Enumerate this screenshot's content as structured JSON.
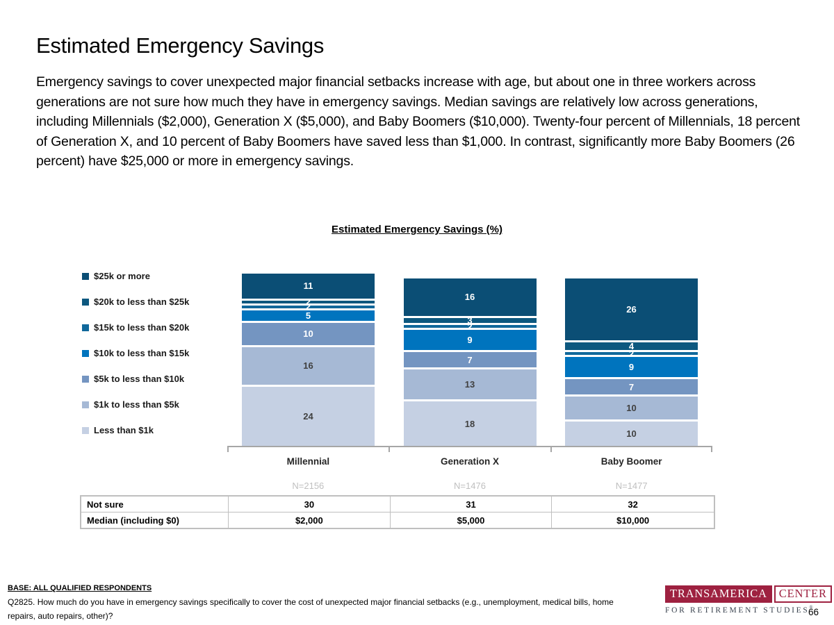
{
  "slide": {
    "title": "Estimated Emergency Savings",
    "body": "Emergency savings to cover unexpected major financial setbacks increase with age, but about one in three workers across generations are not sure how much they have in emergency savings. Median savings are relatively low across generations, including Millennials ($2,000), Generation X ($5,000), and Baby Boomers ($10,000). Twenty-four percent of Millennials, 18 percent of Generation X, and 10 percent of Baby Boomers have saved less than $1,000. In contrast, significantly more Baby Boomers (26 percent) have $25,000 or more in emergency savings.",
    "page_number": "66"
  },
  "chart_data": {
    "type": "bar",
    "stacked": true,
    "title": "Estimated Emergency Savings (%)",
    "categories": [
      "Millennial",
      "Generation X",
      "Baby Boomer"
    ],
    "sample_sizes": [
      "N=2156",
      "N=1476",
      "N=1477"
    ],
    "series": [
      {
        "name": "$25k or more",
        "color": "#0B4E75",
        "values": [
          11,
          16,
          26
        ]
      },
      {
        "name": "$20k to less than $25k",
        "color": "#0D587F",
        "values": [
          2,
          3,
          4
        ]
      },
      {
        "name": "$15k to less than $20k",
        "color": "#10689B",
        "values": [
          2,
          2,
          2
        ]
      },
      {
        "name": "$10k to less than $15k",
        "color": "#0074BE",
        "values": [
          5,
          9,
          9
        ]
      },
      {
        "name": "$5k to less than $10k",
        "color": "#7495C1",
        "values": [
          10,
          7,
          7
        ]
      },
      {
        "name": "$1k to less than $5k",
        "color": "#A6B9D5",
        "values": [
          16,
          13,
          10
        ]
      },
      {
        "name": "Less than $1k",
        "color": "#C5D0E3",
        "values": [
          24,
          18,
          10
        ]
      }
    ],
    "value_label_colors": [
      "#FFFFFF",
      "#FFFFFF",
      "#FFFFFF",
      "#FFFFFF",
      "#FFFFFF",
      "#404040",
      "#404040"
    ],
    "legend_position": "left",
    "value_axis_visible": false,
    "baseline_color": "#A6A6A6",
    "table": {
      "rows": [
        {
          "label": "Not sure",
          "values": [
            "30",
            "31",
            "32"
          ]
        },
        {
          "label": "Median (including $0)",
          "values": [
            "$2,000",
            "$5,000",
            "$10,000"
          ]
        }
      ]
    }
  },
  "footer": {
    "base_label": "BASE: ALL QUALIFIED RESPONDENTS",
    "question": "Q2825. How much do you have in emergency savings specifically to cover the cost of unexpected major financial setbacks (e.g., unemployment, medical bills, home repairs, auto repairs, other)?"
  },
  "logo": {
    "line1_left": "TRANSAMERICA",
    "line1_right": "CENTER",
    "line2": "FOR RETIREMENT STUDIES",
    "registered_mark": "®",
    "brand_color": "#9E2140",
    "line2_color": "#39424E"
  }
}
